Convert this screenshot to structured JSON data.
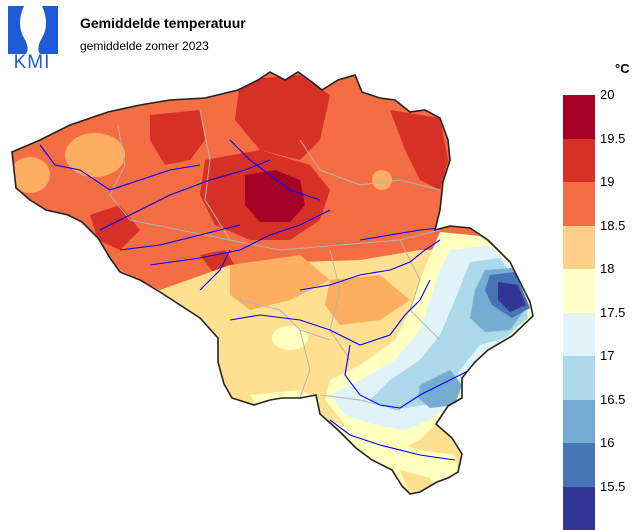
{
  "header": {
    "logo_text": "KMI",
    "title": "Gemiddelde temperatuur",
    "subtitle": "gemiddelde zomer 2023"
  },
  "legend": {
    "unit": "°C",
    "ticks": [
      "20",
      "19.5",
      "19",
      "18.5",
      "18",
      "17.5",
      "17",
      "16.5",
      "16",
      "15.5"
    ],
    "colors_top_to_bottom": [
      "#a50026",
      "#d73027",
      "#f46d43",
      "#fdae61",
      "#fee090",
      "#ffffbf",
      "#e0f3f8",
      "#abd9e9",
      "#74add1",
      "#4575b4",
      "#313695"
    ]
  },
  "colors": {
    "brand": "#1e5bd6",
    "rivers": "#0000ff",
    "borders": "#b3b3b3",
    "outline": "#222222"
  }
}
